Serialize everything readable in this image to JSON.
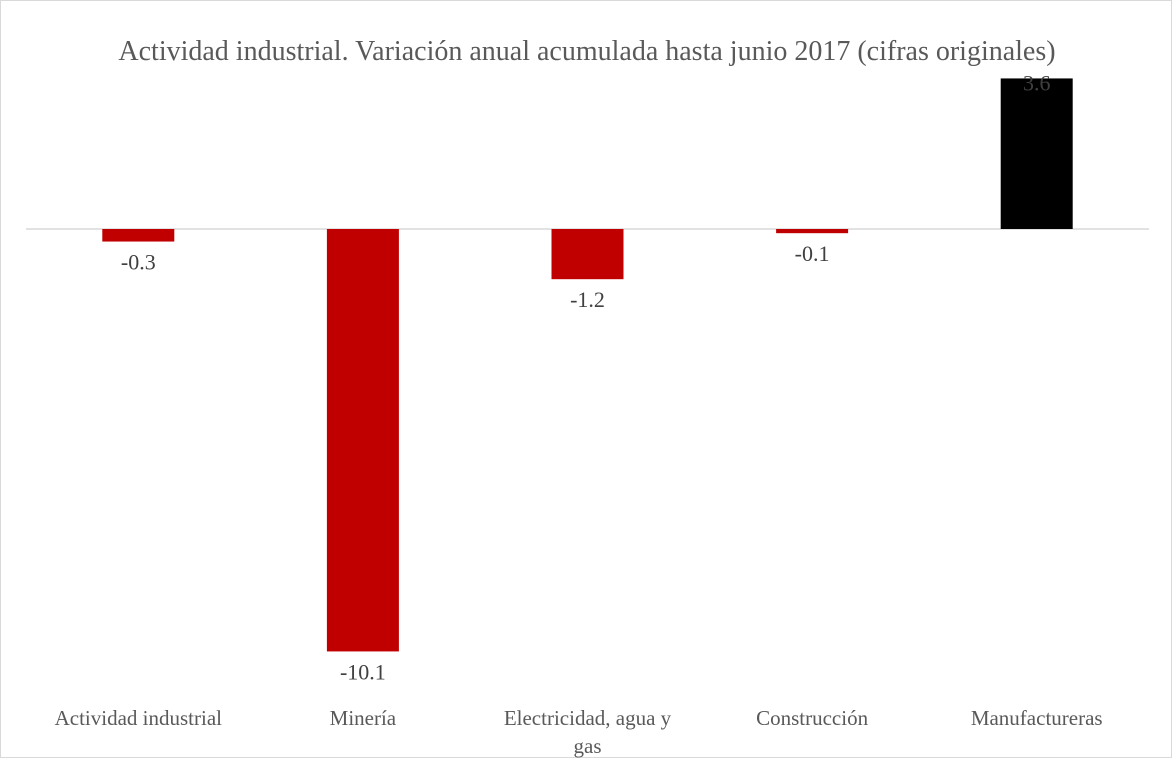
{
  "chart_data": {
    "type": "bar",
    "title": "Actividad industrial. Variación anual acumulada hasta junio 2017 (cifras originales)",
    "categories": [
      "Actividad industrial",
      "Minería",
      "Electricidad, agua y gas",
      "Construcción",
      "Manufactureras"
    ],
    "values": [
      -0.3,
      -10.1,
      -1.2,
      -0.1,
      3.6
    ],
    "data_labels": [
      "-0.3",
      "-10.1",
      "-1.2",
      "-0.1",
      "3.6"
    ],
    "bar_colors": [
      "#c00000",
      "#c00000",
      "#c00000",
      "#c00000",
      "#000000"
    ],
    "xlabel": "",
    "ylabel": "",
    "ylim": [
      -10.1,
      3.6
    ],
    "grid": false,
    "legend": "none"
  }
}
